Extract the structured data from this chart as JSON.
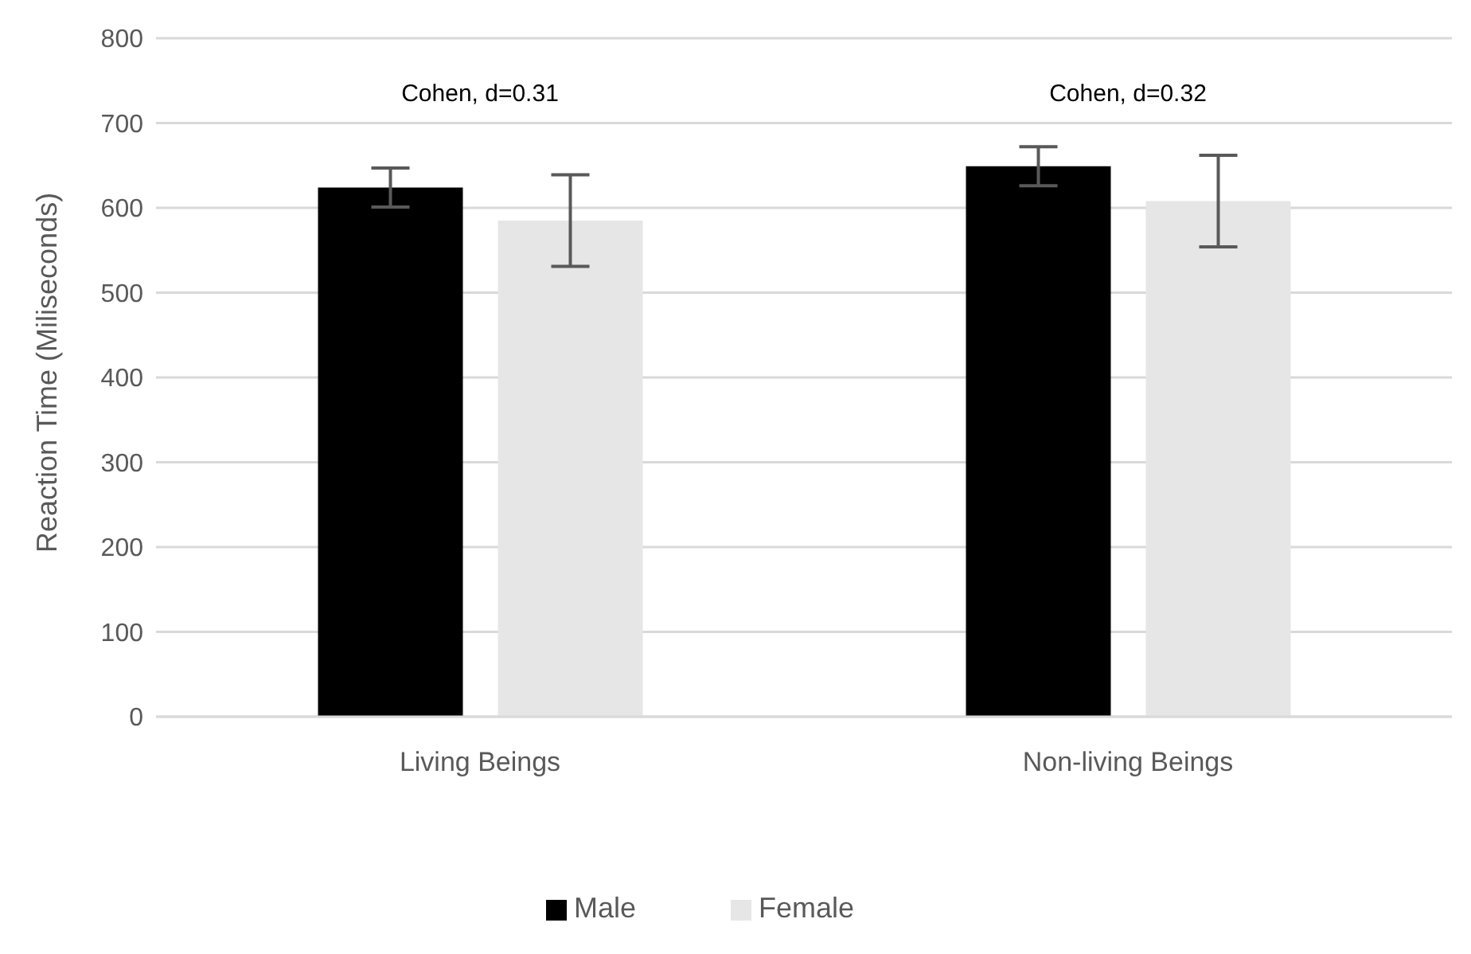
{
  "chart_data": {
    "type": "bar",
    "ylabel": "Reaction Time (Miliseconds)",
    "categories": [
      "Living Beings",
      "Non-living Beings"
    ],
    "series": [
      {
        "name": "Male",
        "color": "#000000",
        "values": [
          624,
          649
        ],
        "errors": [
          23,
          23
        ]
      },
      {
        "name": "Female",
        "color": "#e6e6e6",
        "values": [
          585,
          608
        ],
        "errors": [
          54,
          54
        ]
      }
    ],
    "ylim": [
      0,
      800
    ],
    "yticks": [
      0,
      100,
      200,
      300,
      400,
      500,
      600,
      700,
      800
    ],
    "grid": "y",
    "legend": "bottom",
    "annotations": [
      "Cohen, d=0.31",
      "Cohen, d=0.32"
    ]
  }
}
